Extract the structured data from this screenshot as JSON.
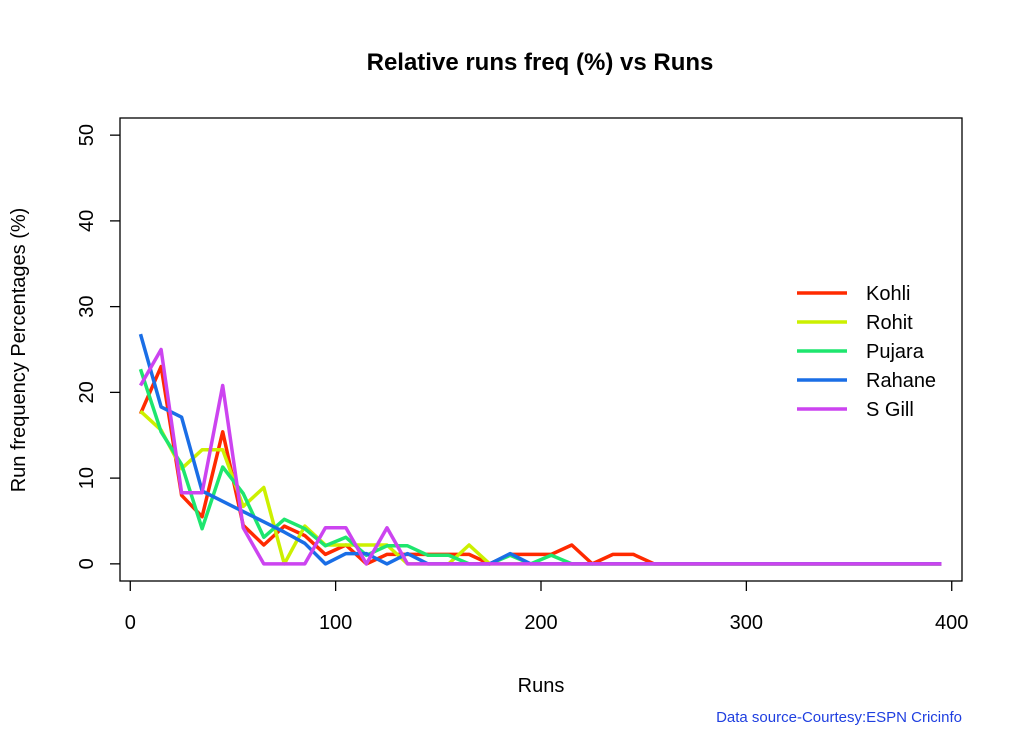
{
  "chart_data": {
    "type": "line",
    "title": "Relative runs freq (%) vs Runs",
    "xlabel": "Runs",
    "ylabel": "Run frequency Percentages (%)",
    "xlim": [
      -5,
      405
    ],
    "ylim": [
      -2,
      52
    ],
    "x_ticks": [
      0,
      100,
      200,
      300,
      400
    ],
    "y_ticks": [
      0,
      10,
      20,
      30,
      40,
      50
    ],
    "legend_position": "right",
    "grid": false,
    "x": [
      5,
      15,
      25,
      35,
      45,
      55,
      65,
      75,
      85,
      95,
      105,
      115,
      125,
      135,
      145,
      155,
      165,
      175,
      185,
      195,
      205,
      215,
      225,
      235,
      245,
      255,
      265,
      275,
      285,
      295,
      305,
      315,
      325,
      335,
      345,
      355,
      365,
      375,
      385,
      395
    ],
    "series": [
      {
        "name": "Kohli",
        "color": "#ff2a00",
        "values": [
          17.5,
          23,
          8,
          5.5,
          15.4,
          4.5,
          2.2,
          4.4,
          3.3,
          1.1,
          2.2,
          0,
          1.1,
          1.1,
          1.1,
          1.1,
          1.1,
          0,
          1.1,
          1.1,
          1.1,
          2.2,
          0,
          1.1,
          1.1,
          0,
          0,
          0,
          0,
          0,
          0,
          0,
          0,
          0,
          0,
          0,
          0,
          0,
          0,
          0
        ]
      },
      {
        "name": "Rohit",
        "color": "#ccf000",
        "values": [
          17.8,
          15.6,
          11.1,
          13.3,
          13.3,
          6.7,
          8.9,
          0,
          4.4,
          2.2,
          2.2,
          2.2,
          2.2,
          0,
          0,
          0,
          2.2,
          0,
          0,
          0,
          0,
          0,
          0,
          0,
          0,
          0,
          0,
          0,
          0,
          0,
          0,
          0,
          0,
          0,
          0,
          0,
          0,
          0,
          0,
          0
        ]
      },
      {
        "name": "Pujara",
        "color": "#1ee66e",
        "values": [
          22.7,
          15.4,
          11.6,
          4.1,
          11.3,
          8.2,
          3.1,
          5.2,
          4.1,
          2.1,
          3.1,
          1.0,
          2.1,
          2.1,
          1.0,
          1.0,
          0,
          0,
          1.0,
          0,
          1.0,
          0,
          0,
          0,
          0,
          0,
          0,
          0,
          0,
          0,
          0,
          0,
          0,
          0,
          0,
          0,
          0,
          0,
          0,
          0
        ]
      },
      {
        "name": "Rahane",
        "color": "#1a6ee6",
        "values": [
          26.8,
          18.3,
          17.1,
          8.5,
          7.3,
          6.1,
          4.9,
          3.7,
          2.4,
          0,
          1.2,
          1.2,
          0,
          1.2,
          0,
          0,
          0,
          0,
          1.2,
          0,
          0,
          0,
          0,
          0,
          0,
          0,
          0,
          0,
          0,
          0,
          0,
          0,
          0,
          0,
          0,
          0,
          0,
          0,
          0,
          0
        ]
      },
      {
        "name": "S Gill",
        "color": "#cc44f0",
        "values": [
          20.8,
          25,
          8.3,
          8.3,
          20.8,
          4.2,
          0,
          0,
          0,
          4.2,
          4.2,
          0,
          4.2,
          0,
          0,
          0,
          0,
          0,
          0,
          0,
          0,
          0,
          0,
          0,
          0,
          0,
          0,
          0,
          0,
          0,
          0,
          0,
          0,
          0,
          0,
          0,
          0,
          0,
          0,
          0
        ]
      }
    ],
    "source_note": "Data source-Courtesy:ESPN Cricinfo"
  }
}
